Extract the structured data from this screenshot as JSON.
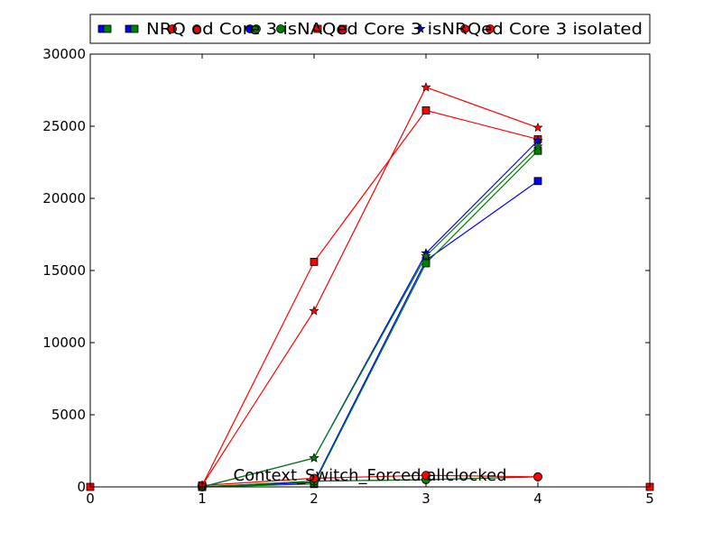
{
  "chart_data": {
    "type": "line",
    "title": "",
    "xlabel": "",
    "ylabel": "",
    "annotation": "Context_Switch_Forced allclocked",
    "xlim": [
      0,
      5
    ],
    "ylim": [
      0,
      30000
    ],
    "xticks": [
      "0",
      "1",
      "2",
      "3",
      "4",
      "5"
    ],
    "yticks": [
      "0",
      "5000",
      "10000",
      "15000",
      "20000",
      "25000",
      "30000"
    ],
    "grid": false,
    "legend_placement": "top",
    "legend_text": "NRQ od Core 3 isNAQed Core 3 isNRQed Core 3 isolated",
    "series": [
      {
        "color": "#0000ff",
        "marker": "square",
        "x": [
          1,
          2,
          3,
          4
        ],
        "y": [
          0,
          300,
          15700,
          21200
        ]
      },
      {
        "color": "#008000",
        "marker": "square",
        "x": [
          1,
          2,
          3,
          4
        ],
        "y": [
          0,
          200,
          15500,
          23300
        ]
      },
      {
        "color": "#ff0000",
        "marker": "square",
        "x": [
          1,
          2,
          3,
          4
        ],
        "y": [
          100,
          15600,
          26100,
          24100
        ]
      },
      {
        "color": "#0000ff",
        "marker": "circle",
        "x": [
          1,
          2,
          3,
          4
        ],
        "y": [
          0,
          400,
          500,
          700
        ]
      },
      {
        "color": "#008000",
        "marker": "circle",
        "x": [
          1,
          2,
          3,
          4
        ],
        "y": [
          0,
          400,
          500,
          700
        ]
      },
      {
        "color": "#ff0000",
        "marker": "circle",
        "x": [
          1,
          2,
          3,
          4
        ],
        "y": [
          100,
          600,
          800,
          700
        ]
      },
      {
        "color": "#0000ff",
        "marker": "star",
        "x": [
          1,
          2,
          3,
          4
        ],
        "y": [
          0,
          2000,
          16200,
          24000
        ]
      },
      {
        "color": "#008000",
        "marker": "star",
        "x": [
          1,
          2,
          3,
          4
        ],
        "y": [
          0,
          2000,
          16000,
          23600
        ]
      },
      {
        "color": "#ff0000",
        "marker": "star",
        "x": [
          1,
          2,
          3,
          4
        ],
        "y": [
          100,
          12200,
          27700,
          24900
        ]
      }
    ]
  }
}
